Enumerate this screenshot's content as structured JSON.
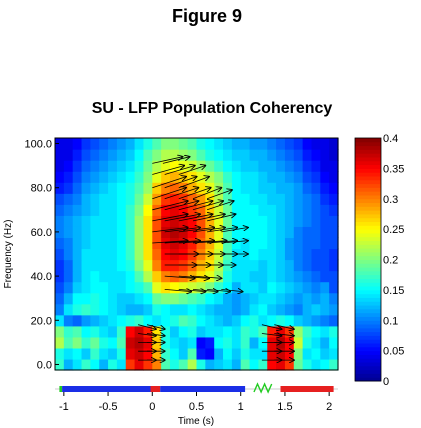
{
  "figure_label": "Figure 9",
  "chart_data": {
    "type": "heatmap",
    "title": "SU - LFP Population Coherency",
    "xlabel": "Time (s)",
    "ylabel": "Frequency (Hz)",
    "xlim": [
      -1.1,
      2.1
    ],
    "ylim": [
      -2.5,
      102.5
    ],
    "x_ticks": [
      -1,
      -0.5,
      0,
      0.5,
      1,
      1.5,
      2
    ],
    "x_tick_labels": [
      "-1",
      "-0.5",
      "0",
      "0.5",
      "1",
      "1.5",
      "2"
    ],
    "y_ticks": [
      0,
      20,
      40,
      60,
      80,
      100
    ],
    "y_tick_labels": [
      "0.0",
      "20.0",
      "40.0",
      "60.0",
      "80.0",
      "100.0"
    ],
    "colorbar": {
      "min": 0,
      "max": 0.4,
      "colormap": "jet",
      "ticks": [
        0,
        0.05,
        0.1,
        0.15,
        0.2,
        0.25,
        0.3,
        0.35,
        0.4
      ],
      "tick_labels": [
        "0",
        "0.05",
        "0.1",
        "0.15",
        "0.2",
        "0.25",
        "0.3",
        "0.35",
        "0.4"
      ]
    },
    "cell_times": [
      -1.05,
      -0.95,
      -0.85,
      -0.75,
      -0.65,
      -0.55,
      -0.45,
      -0.35,
      -0.25,
      -0.15,
      -0.05,
      0.05,
      0.15,
      0.25,
      0.35,
      0.45,
      0.55,
      0.65,
      0.75,
      0.85,
      0.95,
      1.05,
      1.15,
      1.25,
      1.35,
      1.45,
      1.55,
      1.65,
      1.75,
      1.85,
      1.95,
      2.05
    ],
    "cell_freqs": [
      0,
      5,
      10,
      15,
      20,
      25,
      30,
      35,
      40,
      45,
      50,
      55,
      60,
      65,
      70,
      75,
      80,
      85,
      90,
      95,
      100
    ],
    "coherency_map": [
      [
        0.17,
        0.12,
        0.14,
        0.17,
        0.15,
        0.12,
        0.16,
        0.14,
        0.33,
        0.36,
        0.33,
        0.3,
        0.18,
        0.16,
        0.18,
        0.22,
        0.16,
        0.12,
        0.13,
        0.14,
        0.12,
        0.18,
        0.15,
        0.17,
        0.35,
        0.36,
        0.33,
        0.19,
        0.16,
        0.14,
        0.15,
        0.17
      ],
      [
        0.16,
        0.14,
        0.15,
        0.13,
        0.17,
        0.14,
        0.13,
        0.16,
        0.36,
        0.37,
        0.35,
        0.28,
        0.17,
        0.15,
        0.13,
        0.18,
        0.06,
        0.05,
        0.12,
        0.15,
        0.13,
        0.16,
        0.14,
        0.14,
        0.36,
        0.37,
        0.35,
        0.2,
        0.14,
        0.15,
        0.13,
        0.14
      ],
      [
        0.22,
        0.18,
        0.2,
        0.17,
        0.19,
        0.16,
        0.15,
        0.18,
        0.37,
        0.38,
        0.36,
        0.27,
        0.16,
        0.14,
        0.13,
        0.14,
        0.05,
        0.06,
        0.15,
        0.16,
        0.14,
        0.17,
        0.12,
        0.15,
        0.36,
        0.38,
        0.35,
        0.23,
        0.16,
        0.14,
        0.12,
        0.15
      ],
      [
        0.2,
        0.17,
        0.18,
        0.15,
        0.16,
        0.14,
        0.13,
        0.17,
        0.35,
        0.37,
        0.34,
        0.26,
        0.16,
        0.13,
        0.15,
        0.16,
        0.13,
        0.14,
        0.14,
        0.15,
        0.14,
        0.17,
        0.16,
        0.18,
        0.34,
        0.36,
        0.33,
        0.21,
        0.17,
        0.15,
        0.14,
        0.16
      ],
      [
        0.14,
        0.1,
        0.09,
        0.11,
        0.12,
        0.13,
        0.14,
        0.15,
        0.16,
        0.17,
        0.15,
        0.14,
        0.15,
        0.16,
        0.18,
        0.17,
        0.15,
        0.14,
        0.13,
        0.12,
        0.13,
        0.15,
        0.16,
        0.14,
        0.15,
        0.16,
        0.15,
        0.13,
        0.12,
        0.11,
        0.1,
        0.09
      ],
      [
        0.1,
        0.14,
        0.16,
        0.17,
        0.16,
        0.15,
        0.14,
        0.13,
        0.12,
        0.12,
        0.13,
        0.16,
        0.15,
        0.14,
        0.14,
        0.15,
        0.14,
        0.13,
        0.12,
        0.12,
        0.11,
        0.12,
        0.14,
        0.15,
        0.13,
        0.12,
        0.11,
        0.1,
        0.12,
        0.13,
        0.12,
        0.11
      ],
      [
        0.09,
        0.12,
        0.15,
        0.15,
        0.16,
        0.15,
        0.14,
        0.13,
        0.13,
        0.14,
        0.15,
        0.19,
        0.2,
        0.2,
        0.19,
        0.18,
        0.17,
        0.15,
        0.14,
        0.12,
        0.11,
        0.12,
        0.13,
        0.14,
        0.14,
        0.13,
        0.12,
        0.11,
        0.12,
        0.11,
        0.12,
        0.1
      ],
      [
        0.08,
        0.1,
        0.13,
        0.14,
        0.15,
        0.15,
        0.14,
        0.14,
        0.15,
        0.16,
        0.18,
        0.24,
        0.26,
        0.25,
        0.24,
        0.23,
        0.22,
        0.2,
        0.17,
        0.15,
        0.12,
        0.14,
        0.14,
        0.13,
        0.15,
        0.14,
        0.13,
        0.12,
        0.11,
        0.1,
        0.11,
        0.08
      ],
      [
        0.07,
        0.09,
        0.12,
        0.14,
        0.15,
        0.14,
        0.14,
        0.14,
        0.15,
        0.18,
        0.22,
        0.27,
        0.3,
        0.31,
        0.3,
        0.28,
        0.26,
        0.24,
        0.21,
        0.16,
        0.14,
        0.14,
        0.13,
        0.13,
        0.14,
        0.13,
        0.12,
        0.11,
        0.1,
        0.09,
        0.08,
        0.08
      ],
      [
        0.07,
        0.09,
        0.12,
        0.14,
        0.14,
        0.14,
        0.14,
        0.15,
        0.16,
        0.2,
        0.24,
        0.3,
        0.34,
        0.34,
        0.33,
        0.31,
        0.28,
        0.26,
        0.22,
        0.17,
        0.14,
        0.14,
        0.14,
        0.13,
        0.14,
        0.13,
        0.12,
        0.1,
        0.09,
        0.08,
        0.08,
        0.07
      ],
      [
        0.08,
        0.1,
        0.12,
        0.14,
        0.14,
        0.14,
        0.14,
        0.15,
        0.17,
        0.21,
        0.26,
        0.31,
        0.35,
        0.36,
        0.35,
        0.33,
        0.3,
        0.27,
        0.23,
        0.18,
        0.14,
        0.14,
        0.15,
        0.14,
        0.14,
        0.13,
        0.11,
        0.1,
        0.09,
        0.08,
        0.08,
        0.07
      ],
      [
        0.09,
        0.1,
        0.12,
        0.13,
        0.14,
        0.14,
        0.14,
        0.15,
        0.17,
        0.21,
        0.26,
        0.32,
        0.36,
        0.37,
        0.36,
        0.34,
        0.31,
        0.28,
        0.24,
        0.18,
        0.15,
        0.14,
        0.15,
        0.15,
        0.14,
        0.13,
        0.11,
        0.1,
        0.09,
        0.09,
        0.08,
        0.08
      ],
      [
        0.1,
        0.11,
        0.12,
        0.13,
        0.14,
        0.14,
        0.14,
        0.15,
        0.17,
        0.21,
        0.26,
        0.32,
        0.37,
        0.38,
        0.37,
        0.35,
        0.32,
        0.28,
        0.24,
        0.18,
        0.15,
        0.15,
        0.15,
        0.15,
        0.14,
        0.13,
        0.12,
        0.1,
        0.09,
        0.09,
        0.08,
        0.08
      ],
      [
        0.1,
        0.11,
        0.12,
        0.13,
        0.14,
        0.14,
        0.14,
        0.15,
        0.17,
        0.21,
        0.26,
        0.32,
        0.36,
        0.37,
        0.36,
        0.35,
        0.32,
        0.28,
        0.24,
        0.19,
        0.15,
        0.15,
        0.15,
        0.15,
        0.14,
        0.13,
        0.12,
        0.11,
        0.1,
        0.09,
        0.08,
        0.08
      ],
      [
        0.09,
        0.1,
        0.11,
        0.12,
        0.13,
        0.14,
        0.14,
        0.15,
        0.17,
        0.2,
        0.25,
        0.31,
        0.35,
        0.36,
        0.35,
        0.33,
        0.31,
        0.27,
        0.23,
        0.19,
        0.15,
        0.15,
        0.15,
        0.14,
        0.14,
        0.13,
        0.12,
        0.11,
        0.1,
        0.09,
        0.08,
        0.07
      ],
      [
        0.08,
        0.09,
        0.1,
        0.12,
        0.13,
        0.14,
        0.14,
        0.15,
        0.16,
        0.19,
        0.23,
        0.29,
        0.33,
        0.34,
        0.33,
        0.31,
        0.29,
        0.26,
        0.22,
        0.18,
        0.15,
        0.15,
        0.14,
        0.14,
        0.13,
        0.13,
        0.12,
        0.11,
        0.1,
        0.09,
        0.07,
        0.06
      ],
      [
        0.06,
        0.07,
        0.09,
        0.11,
        0.12,
        0.13,
        0.14,
        0.15,
        0.16,
        0.18,
        0.21,
        0.27,
        0.3,
        0.31,
        0.3,
        0.28,
        0.26,
        0.24,
        0.21,
        0.18,
        0.15,
        0.14,
        0.14,
        0.13,
        0.13,
        0.12,
        0.12,
        0.11,
        0.09,
        0.08,
        0.06,
        0.05
      ],
      [
        0.05,
        0.06,
        0.08,
        0.1,
        0.11,
        0.12,
        0.13,
        0.14,
        0.15,
        0.17,
        0.2,
        0.24,
        0.27,
        0.28,
        0.27,
        0.26,
        0.24,
        0.22,
        0.2,
        0.17,
        0.15,
        0.14,
        0.14,
        0.13,
        0.12,
        0.12,
        0.11,
        0.1,
        0.08,
        0.07,
        0.05,
        0.04
      ],
      [
        0.04,
        0.05,
        0.07,
        0.09,
        0.1,
        0.11,
        0.12,
        0.13,
        0.14,
        0.16,
        0.19,
        0.22,
        0.24,
        0.25,
        0.24,
        0.23,
        0.21,
        0.19,
        0.17,
        0.15,
        0.14,
        0.13,
        0.13,
        0.12,
        0.12,
        0.11,
        0.1,
        0.09,
        0.07,
        0.06,
        0.04,
        0.04
      ],
      [
        0.04,
        0.04,
        0.06,
        0.08,
        0.09,
        0.1,
        0.11,
        0.12,
        0.13,
        0.15,
        0.18,
        0.2,
        0.22,
        0.22,
        0.21,
        0.2,
        0.18,
        0.16,
        0.15,
        0.14,
        0.13,
        0.13,
        0.12,
        0.12,
        0.11,
        0.1,
        0.09,
        0.08,
        0.06,
        0.05,
        0.04,
        0.03
      ],
      [
        0.04,
        0.04,
        0.05,
        0.07,
        0.08,
        0.09,
        0.1,
        0.11,
        0.12,
        0.14,
        0.16,
        0.18,
        0.2,
        0.2,
        0.19,
        0.18,
        0.16,
        0.15,
        0.14,
        0.13,
        0.12,
        0.12,
        0.11,
        0.11,
        0.1,
        0.09,
        0.08,
        0.07,
        0.05,
        0.04,
        0.04,
        0.03
      ]
    ],
    "arrows": [
      {
        "t": 0.0,
        "f": 91,
        "dt": 0.34,
        "df": 3
      },
      {
        "t": 0.12,
        "f": 91,
        "dt": 0.3,
        "df": 3
      },
      {
        "t": 0.0,
        "f": 86,
        "dt": 0.36,
        "df": 4
      },
      {
        "t": 0.14,
        "f": 86,
        "dt": 0.34,
        "df": 4
      },
      {
        "t": 0.3,
        "f": 86,
        "dt": 0.3,
        "df": 4
      },
      {
        "t": 0.0,
        "f": 80,
        "dt": 0.38,
        "df": 5
      },
      {
        "t": 0.14,
        "f": 80,
        "dt": 0.36,
        "df": 5
      },
      {
        "t": 0.3,
        "f": 80,
        "dt": 0.34,
        "df": 5
      },
      {
        "t": 0.0,
        "f": 75,
        "dt": 0.38,
        "df": 5
      },
      {
        "t": 0.14,
        "f": 75,
        "dt": 0.38,
        "df": 5
      },
      {
        "t": 0.3,
        "f": 75,
        "dt": 0.36,
        "df": 5
      },
      {
        "t": 0.46,
        "f": 75,
        "dt": 0.32,
        "df": 5
      },
      {
        "t": 0.62,
        "f": 75,
        "dt": 0.28,
        "df": 4
      },
      {
        "t": 0.0,
        "f": 70,
        "dt": 0.4,
        "df": 4
      },
      {
        "t": 0.14,
        "f": 70,
        "dt": 0.38,
        "df": 4
      },
      {
        "t": 0.3,
        "f": 70,
        "dt": 0.38,
        "df": 4
      },
      {
        "t": 0.46,
        "f": 70,
        "dt": 0.34,
        "df": 4
      },
      {
        "t": 0.62,
        "f": 70,
        "dt": 0.3,
        "df": 4
      },
      {
        "t": 0.0,
        "f": 65,
        "dt": 0.4,
        "df": 3
      },
      {
        "t": 0.14,
        "f": 65,
        "dt": 0.4,
        "df": 3
      },
      {
        "t": 0.3,
        "f": 65,
        "dt": 0.38,
        "df": 3
      },
      {
        "t": 0.46,
        "f": 65,
        "dt": 0.36,
        "df": 3
      },
      {
        "t": 0.62,
        "f": 65,
        "dt": 0.32,
        "df": 3
      },
      {
        "t": 0.0,
        "f": 60,
        "dt": 0.4,
        "df": 2
      },
      {
        "t": 0.14,
        "f": 60,
        "dt": 0.4,
        "df": 2
      },
      {
        "t": 0.3,
        "f": 60,
        "dt": 0.4,
        "df": 2
      },
      {
        "t": 0.46,
        "f": 60,
        "dt": 0.36,
        "df": 2
      },
      {
        "t": 0.62,
        "f": 60,
        "dt": 0.34,
        "df": 2
      },
      {
        "t": 0.78,
        "f": 60,
        "dt": 0.3,
        "df": 2
      },
      {
        "t": 0.0,
        "f": 55,
        "dt": 0.4,
        "df": 1
      },
      {
        "t": 0.14,
        "f": 55,
        "dt": 0.4,
        "df": 1
      },
      {
        "t": 0.3,
        "f": 55,
        "dt": 0.4,
        "df": 1
      },
      {
        "t": 0.46,
        "f": 55,
        "dt": 0.38,
        "df": 1
      },
      {
        "t": 0.62,
        "f": 55,
        "dt": 0.34,
        "df": 1
      },
      {
        "t": 0.78,
        "f": 55,
        "dt": 0.3,
        "df": 1
      },
      {
        "t": 0.14,
        "f": 50,
        "dt": 0.38,
        "df": 0
      },
      {
        "t": 0.3,
        "f": 50,
        "dt": 0.38,
        "df": 0
      },
      {
        "t": 0.46,
        "f": 50,
        "dt": 0.36,
        "df": 0
      },
      {
        "t": 0.62,
        "f": 50,
        "dt": 0.34,
        "df": 0
      },
      {
        "t": 0.78,
        "f": 50,
        "dt": 0.3,
        "df": 0
      },
      {
        "t": 0.14,
        "f": 45,
        "dt": 0.36,
        "df": 0
      },
      {
        "t": 0.3,
        "f": 45,
        "dt": 0.36,
        "df": 0
      },
      {
        "t": 0.46,
        "f": 45,
        "dt": 0.34,
        "df": 0
      },
      {
        "t": 0.62,
        "f": 45,
        "dt": 0.32,
        "df": 0
      },
      {
        "t": 0.14,
        "f": 40,
        "dt": 0.34,
        "df": -1
      },
      {
        "t": 0.3,
        "f": 40,
        "dt": 0.34,
        "df": -1
      },
      {
        "t": 0.46,
        "f": 40,
        "dt": 0.32,
        "df": -1
      },
      {
        "t": 0.14,
        "f": 34,
        "dt": 0.3,
        "df": -1
      },
      {
        "t": 0.3,
        "f": 34,
        "dt": 0.3,
        "df": -1
      },
      {
        "t": 0.46,
        "f": 34,
        "dt": 0.28,
        "df": -1
      },
      {
        "t": 0.62,
        "f": 34,
        "dt": 0.26,
        "df": -1
      },
      {
        "t": 0.78,
        "f": 34,
        "dt": 0.24,
        "df": -1
      },
      {
        "t": -0.16,
        "f": 18,
        "dt": 0.2,
        "df": -2
      },
      {
        "t": -0.06,
        "f": 18,
        "dt": 0.2,
        "df": -2
      },
      {
        "t": -0.16,
        "f": 14,
        "dt": 0.2,
        "df": -1
      },
      {
        "t": -0.06,
        "f": 14,
        "dt": 0.2,
        "df": -1
      },
      {
        "t": -0.16,
        "f": 10,
        "dt": 0.2,
        "df": 0
      },
      {
        "t": -0.06,
        "f": 10,
        "dt": 0.2,
        "df": 0
      },
      {
        "t": -0.16,
        "f": 6,
        "dt": 0.2,
        "df": 0
      },
      {
        "t": -0.06,
        "f": 6,
        "dt": 0.2,
        "df": 0
      },
      {
        "t": -0.16,
        "f": 2,
        "dt": 0.2,
        "df": 0
      },
      {
        "t": -0.06,
        "f": 2,
        "dt": 0.2,
        "df": 0
      },
      {
        "t": 1.24,
        "f": 18,
        "dt": 0.22,
        "df": -2
      },
      {
        "t": 1.38,
        "f": 18,
        "dt": 0.22,
        "df": -2
      },
      {
        "t": 1.24,
        "f": 14,
        "dt": 0.22,
        "df": -1
      },
      {
        "t": 1.38,
        "f": 14,
        "dt": 0.22,
        "df": -1
      },
      {
        "t": 1.24,
        "f": 10,
        "dt": 0.22,
        "df": 0
      },
      {
        "t": 1.38,
        "f": 10,
        "dt": 0.22,
        "df": 0
      },
      {
        "t": 1.24,
        "f": 6,
        "dt": 0.22,
        "df": 0
      },
      {
        "t": 1.38,
        "f": 6,
        "dt": 0.22,
        "df": 0
      },
      {
        "t": 1.24,
        "f": 2,
        "dt": 0.22,
        "df": 0
      },
      {
        "t": 1.38,
        "f": 2,
        "dt": 0.22,
        "df": 0
      }
    ],
    "epoch_bar": [
      {
        "start": -1.05,
        "end": -1.02,
        "color": "#22cc22"
      },
      {
        "start": -1.02,
        "end": -0.02,
        "color": "#1a2ee6"
      },
      {
        "start": -0.02,
        "end": 0.09,
        "color": "#e62020"
      },
      {
        "start": 0.09,
        "end": 1.05,
        "color": "#1a2ee6"
      },
      {
        "start": 1.15,
        "end": 1.35,
        "color": "#22cc22",
        "style": "squiggle"
      },
      {
        "start": 1.45,
        "end": 2.05,
        "color": "#e62020"
      }
    ]
  }
}
